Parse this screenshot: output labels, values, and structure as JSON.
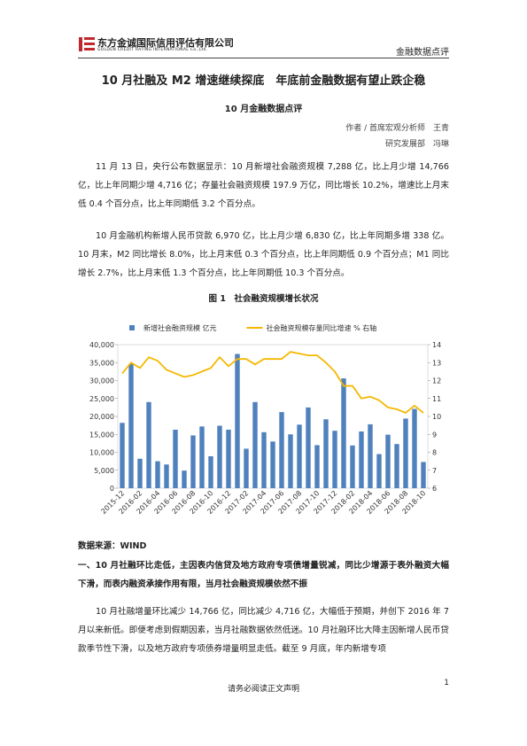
{
  "header": {
    "company": "东方金诚国际信用评估有限公司",
    "company_en": "GOLDEN CREDIT RATING INTERNATIONAL Co.,Ltd.",
    "section": "金融数据点评"
  },
  "title": "10 月社融及 M2 增速继续探底　年底前金融数据有望止跌企稳",
  "subtitle": "10 月金融数据点评",
  "authors": [
    "作者 / 首席宏观分析师　王青",
    "研究发展部　冯琳"
  ],
  "paragraphs": [
    "11 月 13 日，央行公布数据显示：10 月新增社会融资规模 7,288 亿，比上月少增 14,766 亿，比上年同期少增 4,716 亿；存量社会融资规模 197.9 万亿，同比增长 10.2%，增速比上月末低 0.4 个百分点，比上年同期低 3.2 个百分点。",
    "10 月金融机构新增人民币贷款 6,970 亿，比上月少增 6,830 亿，比上年同期多增 338 亿。10 月末，M2 同比增长 8.0%，比上月末低 0.3 个百分点，比上年同期低 0.9 个百分点；M1 同比增长 2.7%，比上月末低 1.3 个百分点，比上年同期低 10.3 个百分点。"
  ],
  "figure_caption": "图 1　社会融资规模增长状况",
  "chart_data": {
    "type": "bar-line",
    "categories": [
      "2015-12",
      null,
      "2016-02",
      null,
      "2016-04",
      null,
      "2016-06",
      null,
      "2016-08",
      null,
      "2016-10",
      null,
      "2016-12",
      null,
      "2017-02",
      null,
      "2017-04",
      null,
      "2017-06",
      null,
      "2017-08",
      null,
      "2017-10",
      null,
      "2017-12",
      null,
      "2018-02",
      null,
      "2018-04",
      null,
      "2018-06",
      null,
      "2018-08",
      null,
      "2018-10"
    ],
    "series": [
      {
        "name": "新增社会融资规模 亿元",
        "color": "#4f81bd",
        "type": "bar",
        "values": [
          18200,
          34700,
          8200,
          24000,
          7500,
          6600,
          16300,
          4900,
          14700,
          17200,
          8900,
          17400,
          16300,
          37400,
          11000,
          24000,
          15600,
          13000,
          21200,
          15000,
          17700,
          22500,
          12000,
          19200,
          16000,
          30600,
          11900,
          15800,
          17800,
          9500,
          14900,
          12300,
          19400,
          22100,
          7300
        ]
      },
      {
        "name": "社会融资规模存量同比增速 % 右轴",
        "color": "#f5b800",
        "type": "line",
        "axis": "y2",
        "values": [
          12.4,
          13.0,
          12.7,
          13.3,
          13.1,
          12.6,
          12.4,
          12.2,
          12.3,
          12.5,
          12.7,
          13.3,
          12.8,
          13.2,
          13.2,
          12.9,
          13.2,
          13.2,
          13.2,
          13.6,
          13.5,
          13.4,
          13.4,
          13.0,
          12.5,
          11.7,
          11.7,
          11.0,
          11.1,
          10.9,
          10.5,
          10.4,
          10.2,
          10.6,
          10.2
        ]
      }
    ],
    "ylim": [
      0,
      40000
    ],
    "yticks": [
      0,
      {
        "value": 5000,
        "label": "5,000"
      },
      {
        "value": 10000,
        "label": "10,000"
      },
      {
        "value": 15000,
        "label": "15,000"
      },
      {
        "value": 20000,
        "label": "20,000"
      },
      {
        "value": 25000,
        "label": "25,000"
      },
      {
        "value": 30000,
        "label": "30,000"
      },
      {
        "value": 35000,
        "label": "35,000"
      },
      {
        "value": 40000,
        "label": "40,000"
      }
    ],
    "y2lim": [
      6,
      14
    ],
    "y2ticks": [
      6,
      7,
      8,
      9,
      10,
      11,
      12,
      13,
      14
    ],
    "legend": "top"
  },
  "data_source": "数据来源：WIND",
  "section_heading": "一、10 月社融环比走低，主因表内信贷及地方政府专项债增量锐减，同比少增源于表外融资大幅下滑，而表内融资承接作用有限，当月社会融资规模依然不振",
  "body": "10 月社融增量环比减少 14,766 亿，同比减少 4,716 亿，大幅低于预期，并创下 2016 年 7 月以来新低。即便考虑到假期因素，当月社融数据依然低迷。10 月社融环比大降主因新增人民币贷款季节性下滑，以及地方政府专项债券增量明显走低。截至 9 月底，年内新增专项",
  "footer": {
    "note": "请务必阅读正文声明",
    "page": "1"
  }
}
